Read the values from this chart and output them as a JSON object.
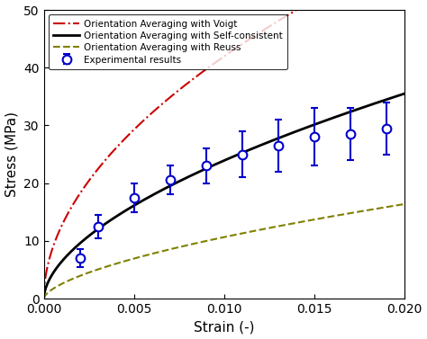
{
  "xlim": [
    0,
    0.02
  ],
  "ylim": [
    0,
    50
  ],
  "xlabel": "Strain (-)",
  "ylabel": "Stress (MPa)",
  "voigt_color": "#cc0000",
  "self_consistent_color": "#000000",
  "reuss_color": "#808000",
  "exp_color": "#0000cc",
  "legend_labels": [
    "Orientation Averaging with Voigt",
    "Orientation Averaging with Self-consistent",
    "Orientation Averaging with Reuss",
    "Experimental results"
  ],
  "exp_strain": [
    0.002,
    0.003,
    0.005,
    0.007,
    0.009,
    0.011,
    0.013,
    0.015,
    0.017,
    0.019
  ],
  "exp_stress": [
    7.0,
    12.5,
    17.5,
    20.5,
    23.0,
    25.0,
    26.5,
    28.0,
    28.5,
    29.5
  ],
  "exp_yerr": [
    1.5,
    2.0,
    2.5,
    2.5,
    3.0,
    4.0,
    4.5,
    5.0,
    4.5,
    4.5
  ],
  "voigt_params": {
    "A": 460,
    "n": 0.52
  },
  "sc_params": {
    "A": 330,
    "n": 0.57
  },
  "reuss_params": {
    "A": 185,
    "n": 0.62
  }
}
